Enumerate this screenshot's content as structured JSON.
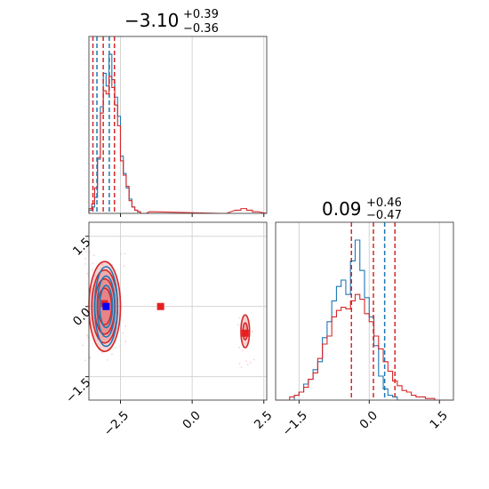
{
  "chart_data": [
    {
      "type": "histogram",
      "panel": "top-left",
      "parameter_index": 0,
      "title": {
        "value": "−3.10",
        "plus": "+0.39",
        "minus": "−0.36"
      },
      "xlim": [
        -3.6,
        2.6
      ],
      "xticks": [
        -2.5,
        0.0,
        2.5
      ],
      "tick_labels_shown": false,
      "grid": true,
      "series": [
        {
          "color": "#1f77b4",
          "bin_edges_start": -3.6,
          "bin_width": 0.1,
          "heights": [
            0.02,
            0.04,
            0.1,
            0.34,
            0.67,
            0.88,
            0.8,
            1.0,
            0.84,
            0.73,
            0.61,
            0.36,
            0.25,
            0.16,
            0.09,
            0.04,
            0.02,
            0.01,
            0.0,
            0.0
          ],
          "quantiles": [
            -3.32,
            -2.89
          ]
        },
        {
          "color": "#d62728",
          "bin_edges_start": -3.6,
          "bin_width": 0.1,
          "heights": [
            0.03,
            0.06,
            0.16,
            0.35,
            0.63,
            0.77,
            0.75,
            0.86,
            0.79,
            0.68,
            0.55,
            0.33,
            0.24,
            0.17,
            0.08,
            0.04,
            0.02,
            0.01,
            0.0,
            0.0
          ],
          "tail": [
            {
              "x": -1.5,
              "h": 0.01
            },
            {
              "x": 1.0,
              "h": 0.0
            },
            {
              "x": 1.5,
              "h": 0.02
            },
            {
              "x": 1.7,
              "h": 0.03
            },
            {
              "x": 1.9,
              "h": 0.02
            },
            {
              "x": 2.1,
              "h": 0.01
            }
          ],
          "quantiles": [
            -3.46,
            -3.1,
            -2.71
          ]
        }
      ]
    },
    {
      "type": "scatter",
      "panel": "bottom-left",
      "xlim": [
        -3.6,
        2.6
      ],
      "ylim": [
        -2.0,
        1.8
      ],
      "xticks": [
        -2.5,
        0.0,
        2.5
      ],
      "yticks": [
        -1.5,
        0.0,
        1.5
      ],
      "xtick_labels": [
        "−2.5",
        "0.0",
        "2.5"
      ],
      "ytick_labels": [
        "−1.5",
        "0.0",
        "1.5"
      ],
      "grid": true,
      "contours": [
        {
          "color": "#d62728",
          "fill": "#e57f82",
          "center": [
            -3.05,
            0.0
          ],
          "levels": [
            {
              "rx": 0.55,
              "ry": 0.96
            },
            {
              "rx": 0.45,
              "ry": 0.78
            },
            {
              "rx": 0.35,
              "ry": 0.59
            },
            {
              "rx": 0.24,
              "ry": 0.39
            }
          ]
        },
        {
          "color": "#1f77b4",
          "fill": "none",
          "center": [
            -3.0,
            0.0
          ],
          "levels": [
            {
              "rx": 0.4,
              "ry": 0.85
            },
            {
              "rx": 0.31,
              "ry": 0.65
            },
            {
              "rx": 0.22,
              "ry": 0.45
            }
          ]
        },
        {
          "color": "#d62728",
          "fill": "#e57f82",
          "center": [
            1.85,
            -0.53
          ],
          "levels": [
            {
              "rx": 0.15,
              "ry": 0.35
            },
            {
              "rx": 0.08,
              "ry": 0.18
            }
          ]
        }
      ],
      "markers": [
        {
          "x": -3.06,
          "y": 0.06,
          "color": "#e62020",
          "shape": "square"
        },
        {
          "x": -1.1,
          "y": 0.0,
          "color": "#e62020",
          "shape": "square"
        },
        {
          "x": 1.85,
          "y": -0.57,
          "color": "#e62020",
          "shape": "square"
        },
        {
          "x": -3.0,
          "y": 0.0,
          "color": "#0000ff",
          "shape": "square"
        }
      ]
    },
    {
      "type": "histogram",
      "panel": "bottom-right",
      "parameter_index": 1,
      "title": {
        "value": "0.09",
        "plus": "+0.46",
        "minus": "−0.47"
      },
      "xlim": [
        -2.0,
        1.8
      ],
      "xticks": [
        -1.5,
        0.0,
        1.5
      ],
      "xtick_labels": [
        "−1.5",
        "0.0",
        "1.5"
      ],
      "grid": true,
      "series": [
        {
          "color": "#1f77b4",
          "bin_edges_start": -2.0,
          "bin_width": 0.1,
          "heights": [
            0.0,
            0.0,
            0.0,
            0.0,
            0.03,
            0.05,
            0.1,
            0.13,
            0.19,
            0.24,
            0.39,
            0.49,
            0.62,
            0.71,
            0.75,
            0.66,
            0.87,
            1.0,
            0.81,
            0.64,
            0.52,
            0.34,
            0.15,
            0.07,
            0.03,
            0.02,
            0.0,
            0.0,
            0.0,
            0.0,
            0.0,
            0.0,
            0.0,
            0.0,
            0.0,
            0.0,
            0.0,
            0.0
          ],
          "quantiles": [
            0.33
          ]
        },
        {
          "color": "#d62728",
          "bin_edges_start": -2.0,
          "bin_width": 0.1,
          "heights": [
            0.0,
            0.0,
            0.0,
            0.02,
            0.03,
            0.05,
            0.08,
            0.13,
            0.17,
            0.26,
            0.35,
            0.4,
            0.52,
            0.56,
            0.58,
            0.57,
            0.62,
            0.66,
            0.63,
            0.54,
            0.49,
            0.4,
            0.32,
            0.24,
            0.18,
            0.12,
            0.09,
            0.06,
            0.05,
            0.03,
            0.02,
            0.02,
            0.01,
            0.01,
            0.0,
            0.0,
            0.0,
            0.0
          ],
          "quantiles": [
            -0.38,
            0.09,
            0.55
          ]
        }
      ]
    }
  ]
}
